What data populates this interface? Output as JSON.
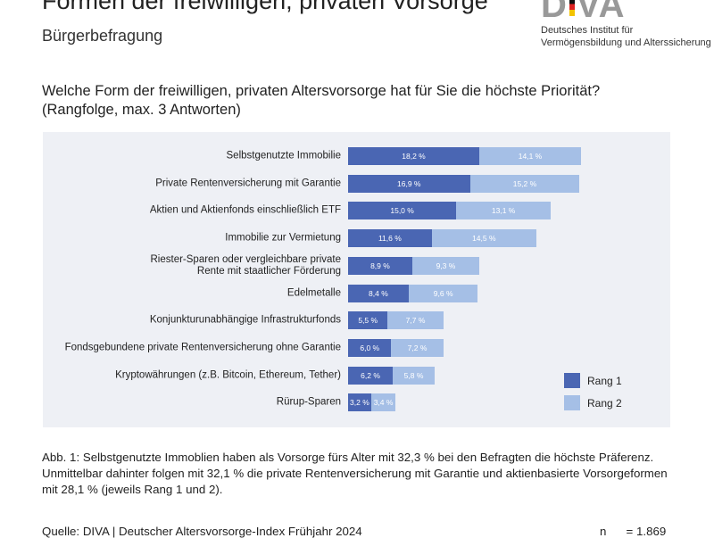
{
  "header": {
    "title": "Formen der freiwilligen, privaten Vorsorge",
    "subtitle": "Bürgerbefragung",
    "logo_text": "DIVA",
    "logo_line1": "Deutsches Institut für",
    "logo_line2": "Vermögensbildung und Alterssicherung"
  },
  "question": {
    "line1": "Welche Form der freiwilligen, privaten Altersvorsorge hat für Sie die höchste Priorität?",
    "line2": "(Rangfolge, max. 3 Antworten)"
  },
  "chart_data": {
    "type": "bar",
    "orientation": "horizontal",
    "stacked": true,
    "categories": [
      "Selbstgenutzte Immobilie",
      "Private Rentenversicherung mit Garantie",
      "Aktien und Aktienfonds einschließlich ETF",
      "Immobilie zur Vermietung",
      "Riester-Sparen oder vergleichbare private Rente mit staatlicher Förderung",
      "Edelmetalle",
      "Konjunkturunabhängige Infrastrukturfonds",
      "Fondsgebundene private Rentenversicherung ohne Garantie",
      "Kryptowährungen (z.B. Bitcoin, Ethereum, Tether)",
      "Rürup-Sparen"
    ],
    "series": [
      {
        "name": "Rang 1",
        "color": "#4a66b3",
        "values": [
          18.2,
          16.9,
          15.0,
          11.6,
          8.9,
          8.4,
          5.5,
          6.0,
          6.2,
          3.2
        ]
      },
      {
        "name": "Rang 2",
        "color": "#a5bfe6",
        "values": [
          14.1,
          15.2,
          13.1,
          14.5,
          9.3,
          9.6,
          7.7,
          7.2,
          5.8,
          3.4
        ]
      }
    ],
    "legend": "bottom-right",
    "unit": "%"
  },
  "caption": "Abb. 1: Selbstgenutzte Immoblien haben als Vorsorge fürs Alter mit 32,3 % bei den Befragten die höchste Präferenz. Unmittelbar dahinter folgen mit 32,1 % die private Rentenversicherung mit Garantie und aktienbasierte Vorsorgeformen mit 28,1 % (jeweils Rang 1 und 2).",
  "source": "Quelle: DIVA | Deutscher Altersvorsorge-Index Frühjahr 2024",
  "n": "n      = 1.869"
}
